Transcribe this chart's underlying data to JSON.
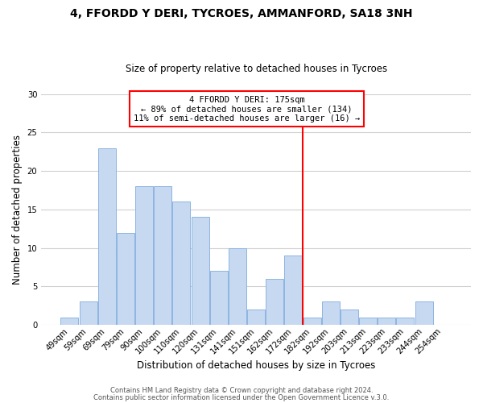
{
  "title": "4, FFORDD Y DERI, TYCROES, AMMANFORD, SA18 3NH",
  "subtitle": "Size of property relative to detached houses in Tycroes",
  "xlabel": "Distribution of detached houses by size in Tycroes",
  "ylabel": "Number of detached properties",
  "bar_labels": [
    "49sqm",
    "59sqm",
    "69sqm",
    "79sqm",
    "90sqm",
    "100sqm",
    "110sqm",
    "120sqm",
    "131sqm",
    "141sqm",
    "151sqm",
    "162sqm",
    "172sqm",
    "182sqm",
    "192sqm",
    "203sqm",
    "213sqm",
    "223sqm",
    "233sqm",
    "244sqm",
    "254sqm"
  ],
  "bar_values": [
    1,
    3,
    23,
    12,
    18,
    18,
    16,
    14,
    7,
    10,
    2,
    6,
    9,
    1,
    3,
    2,
    1,
    1,
    1,
    3,
    0
  ],
  "bar_color": "#c6d9f0",
  "bar_edge_color": "#8db4e2",
  "vline_color": "red",
  "vline_index": 12.5,
  "ylim": [
    0,
    30
  ],
  "annotation_title": "4 FFORDD Y DERI: 175sqm",
  "annotation_line1": "← 89% of detached houses are smaller (134)",
  "annotation_line2": "11% of semi-detached houses are larger (16) →",
  "annotation_box_color": "#ffffff",
  "annotation_box_edge": "red",
  "footer1": "Contains HM Land Registry data © Crown copyright and database right 2024.",
  "footer2": "Contains public sector information licensed under the Open Government Licence v.3.0.",
  "background_color": "#ffffff",
  "grid_color": "#d0d0d0"
}
